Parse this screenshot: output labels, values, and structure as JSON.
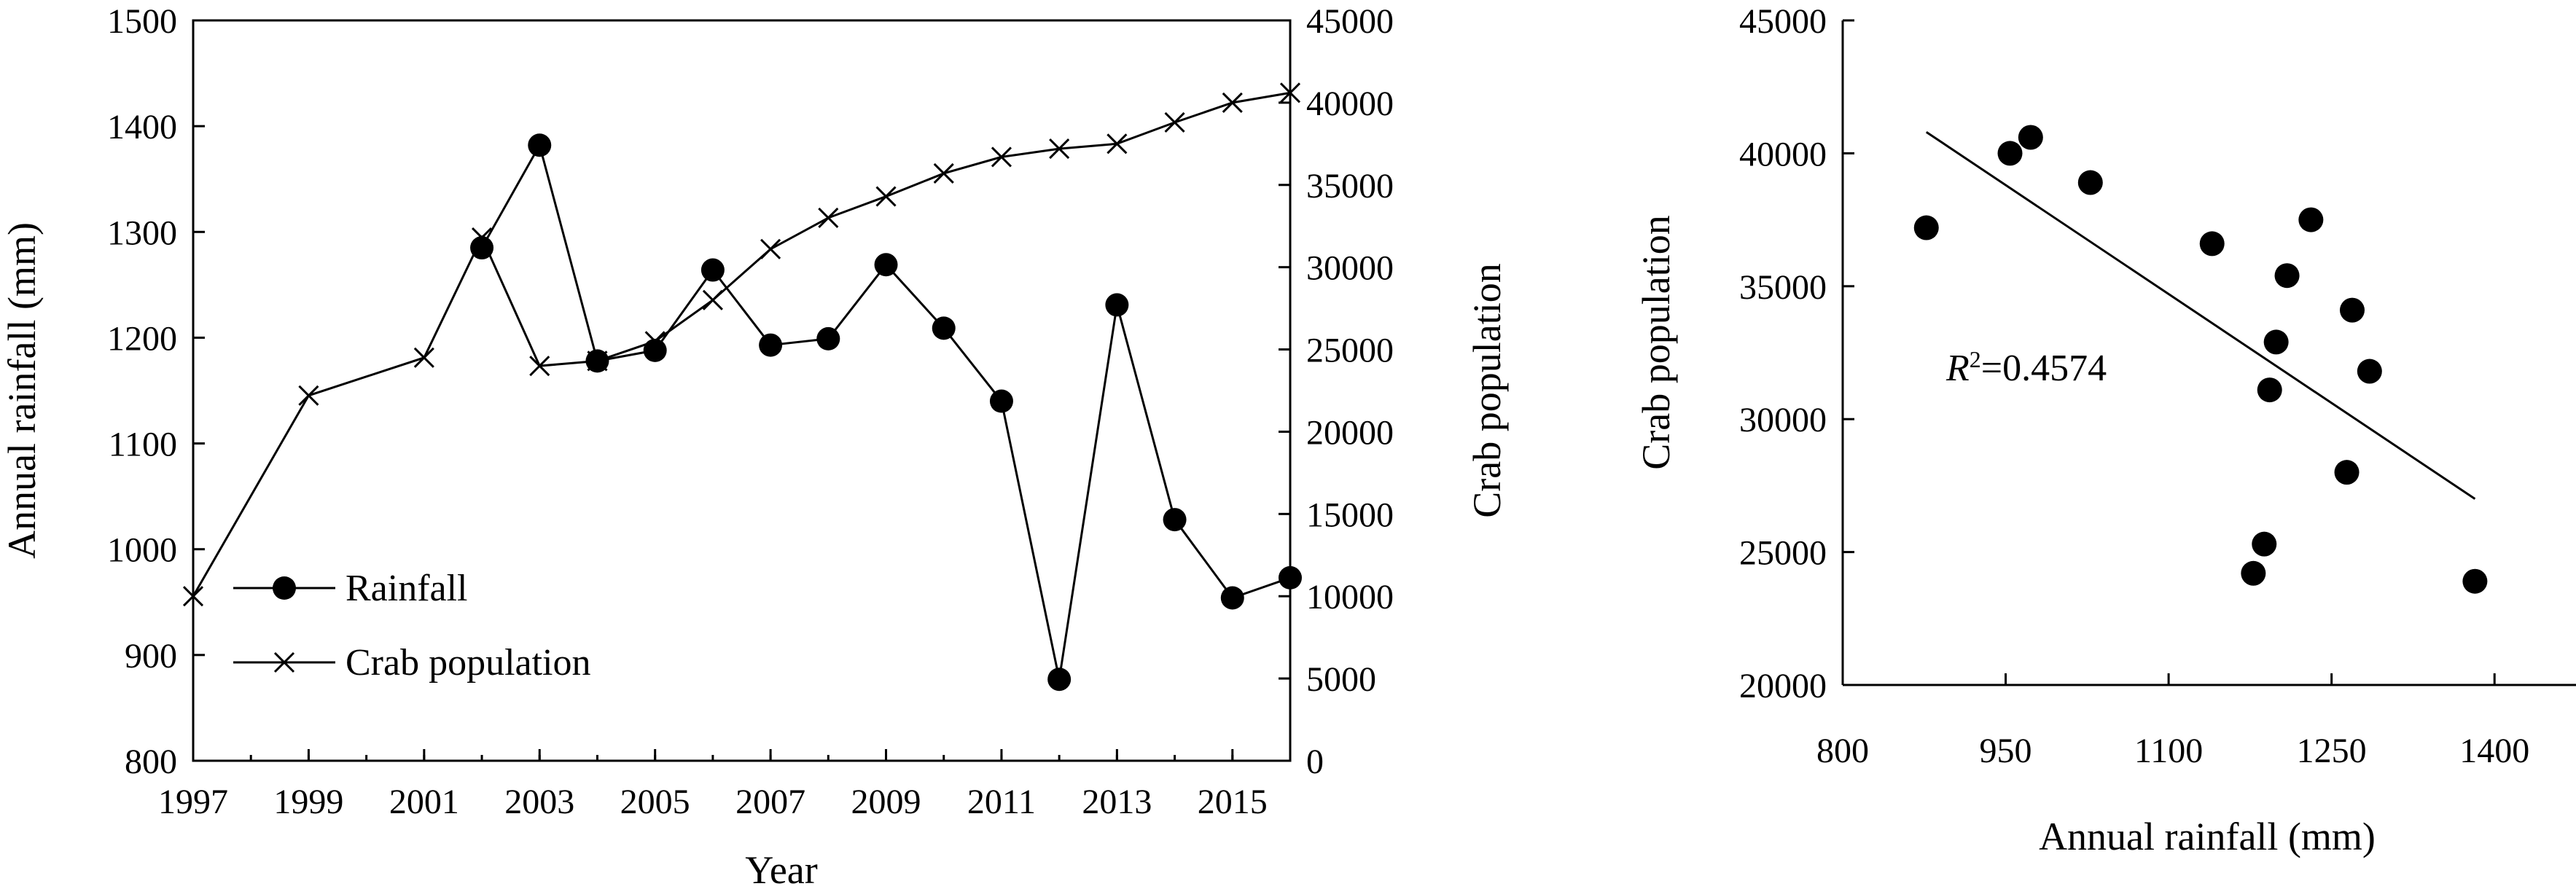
{
  "chart_data": [
    {
      "type": "line",
      "title": "",
      "xlabel": "Year",
      "ylabel": "Annual rainfall (mm)",
      "y2label": "Crab population",
      "xlim": [
        1997,
        2016
      ],
      "ylim": [
        800,
        1500
      ],
      "y2lim": [
        0,
        45000
      ],
      "x_ticks": [
        "1997",
        "1999",
        "2001",
        "2003",
        "2005",
        "2007",
        "2009",
        "2011",
        "2013",
        "2015"
      ],
      "y_ticks": [
        "800",
        "900",
        "1000",
        "1100",
        "1200",
        "1300",
        "1400",
        "1500"
      ],
      "y2_ticks": [
        "0",
        "5000",
        "10000",
        "15000",
        "20000",
        "25000",
        "30000",
        "35000",
        "40000",
        "45000"
      ],
      "legend_position": "bottom-left",
      "series": [
        {
          "name": "Rainfall",
          "axis": "left",
          "marker": "circle",
          "x": [
            2002,
            2003,
            2004,
            2005,
            2006,
            2007,
            2008,
            2009,
            2010,
            2011,
            2012,
            2013,
            2014,
            2015,
            2016
          ],
          "y": [
            1285,
            1382,
            1178,
            1188,
            1264,
            1193,
            1199,
            1269,
            1209,
            1140,
            877,
            1231,
            1028,
            954,
            973
          ]
        },
        {
          "name": "Crab population",
          "axis": "right",
          "marker": "x",
          "x": [
            1997,
            1999,
            2001,
            2002,
            2003,
            2004,
            2005,
            2006,
            2007,
            2008,
            2009,
            2010,
            2011,
            2012,
            2013,
            2014,
            2015,
            2016
          ],
          "y": [
            10000,
            22200,
            24500,
            31800,
            24000,
            24300,
            25500,
            28000,
            31100,
            33000,
            34300,
            35700,
            36700,
            37200,
            37500,
            38800,
            40000,
            40600
          ]
        }
      ]
    },
    {
      "type": "scatter",
      "title": "",
      "xlabel": "Annual rainfall (mm)",
      "ylabel": "Crab population",
      "xlim": [
        800,
        1475
      ],
      "ylim": [
        20000,
        45000
      ],
      "x_ticks": [
        "800",
        "950",
        "1100",
        "1250",
        "1400"
      ],
      "y_ticks": [
        "20000",
        "25000",
        "30000",
        "35000",
        "40000",
        "45000"
      ],
      "annotation": {
        "prefix": "R",
        "sup": "2",
        "value": "=0.4574"
      },
      "points": [
        {
          "x": 877,
          "y": 37200
        },
        {
          "x": 954,
          "y": 40000
        },
        {
          "x": 973,
          "y": 40600
        },
        {
          "x": 1028,
          "y": 38900
        },
        {
          "x": 1140,
          "y": 36600
        },
        {
          "x": 1178,
          "y": 24200
        },
        {
          "x": 1188,
          "y": 25300
        },
        {
          "x": 1193,
          "y": 31100
        },
        {
          "x": 1199,
          "y": 32900
        },
        {
          "x": 1209,
          "y": 35400
        },
        {
          "x": 1231,
          "y": 37500
        },
        {
          "x": 1264,
          "y": 28000
        },
        {
          "x": 1269,
          "y": 34100
        },
        {
          "x": 1285,
          "y": 31800
        },
        {
          "x": 1382,
          "y": 23900
        }
      ],
      "trendline": {
        "x": [
          877,
          1382
        ],
        "y": [
          40800,
          27000
        ]
      }
    }
  ]
}
